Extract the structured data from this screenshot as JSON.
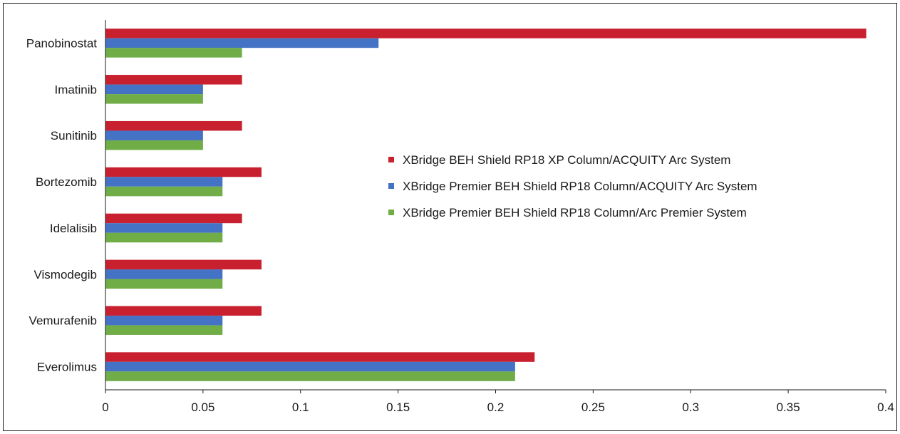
{
  "chart_data": {
    "type": "bar",
    "orientation": "horizontal",
    "title": "",
    "xlabel": "",
    "ylabel": "",
    "xlim": [
      0,
      0.4
    ],
    "x_ticks": [
      "0",
      "0.05",
      "0.1",
      "0.15",
      "0.2",
      "0.25",
      "0.3",
      "0.35",
      "0.4"
    ],
    "grid": false,
    "legend_position": "center-right",
    "categories": [
      "Panobinostat",
      "Imatinib",
      "Sunitinib",
      "Bortezomib",
      "Idelalisib",
      "Vismodegib",
      "Vemurafenib",
      "Everolimus"
    ],
    "series": [
      {
        "name": "XBridge BEH Shield RP18 XP Column/ACQUITY Arc System",
        "color": "#c8202f",
        "values": [
          0.39,
          0.07,
          0.07,
          0.08,
          0.07,
          0.08,
          0.08,
          0.22
        ]
      },
      {
        "name": "XBridge Premier BEH Shield RP18 Column/ACQUITY Arc System",
        "color": "#4472c4",
        "values": [
          0.14,
          0.05,
          0.05,
          0.06,
          0.06,
          0.06,
          0.06,
          0.21
        ]
      },
      {
        "name": "XBridge Premier BEH Shield RP18 Column/Arc Premier System",
        "color": "#70ad47",
        "values": [
          0.07,
          0.05,
          0.05,
          0.06,
          0.06,
          0.06,
          0.06,
          0.21
        ]
      }
    ]
  }
}
